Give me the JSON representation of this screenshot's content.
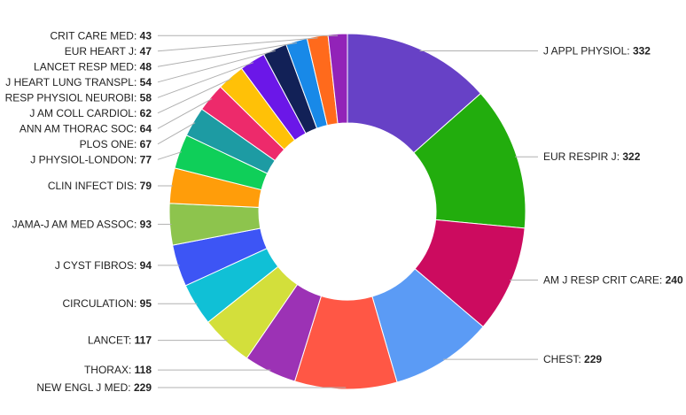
{
  "chart_data": {
    "type": "pie",
    "variant": "donut",
    "title": "",
    "slices": [
      {
        "label": "J APPL PHYSIOL",
        "value": 332,
        "color": "#6741c6"
      },
      {
        "label": "EUR RESPIR J",
        "value": 322,
        "color": "#22ad0d"
      },
      {
        "label": "AM J RESP CRIT CARE",
        "value": 240,
        "color": "#cc0b5f"
      },
      {
        "label": "CHEST",
        "value": 229,
        "color": "#5b9bf5"
      },
      {
        "label": "NEW ENGL J MED",
        "value": 229,
        "color": "#ff5745"
      },
      {
        "label": "THORAX",
        "value": 118,
        "color": "#9c32b5"
      },
      {
        "label": "LANCET",
        "value": 117,
        "color": "#d3df3b"
      },
      {
        "label": "CIRCULATION",
        "value": 95,
        "color": "#10c0d6"
      },
      {
        "label": "J CYST FIBROS",
        "value": 94,
        "color": "#3d55f5"
      },
      {
        "label": "JAMA-J AM MED ASSOC",
        "value": 93,
        "color": "#8dc44d"
      },
      {
        "label": "CLIN INFECT DIS",
        "value": 79,
        "color": "#ff9d0a"
      },
      {
        "label": "J PHYSIOL-LONDON",
        "value": 77,
        "color": "#0fcf59"
      },
      {
        "label": "PLOS ONE",
        "value": 67,
        "color": "#1d9ba3"
      },
      {
        "label": "ANN AM THORAC SOC",
        "value": 64,
        "color": "#ed2a6b"
      },
      {
        "label": "J AM COLL CARDIOL",
        "value": 62,
        "color": "#ffc107"
      },
      {
        "label": "RESP PHYSIOL NEUROBI",
        "value": 58,
        "color": "#6b17e8"
      },
      {
        "label": "J HEART LUNG TRANSPL",
        "value": 54,
        "color": "#122157"
      },
      {
        "label": "LANCET RESP MED",
        "value": 48,
        "color": "#1889e8"
      },
      {
        "label": "EUR HEART J",
        "value": 47,
        "color": "#ff6a1c"
      },
      {
        "label": "CRIT CARE MED",
        "value": 43,
        "color": "#9223b8"
      }
    ],
    "legend": "none",
    "label_style": "external labels with leader lines"
  }
}
